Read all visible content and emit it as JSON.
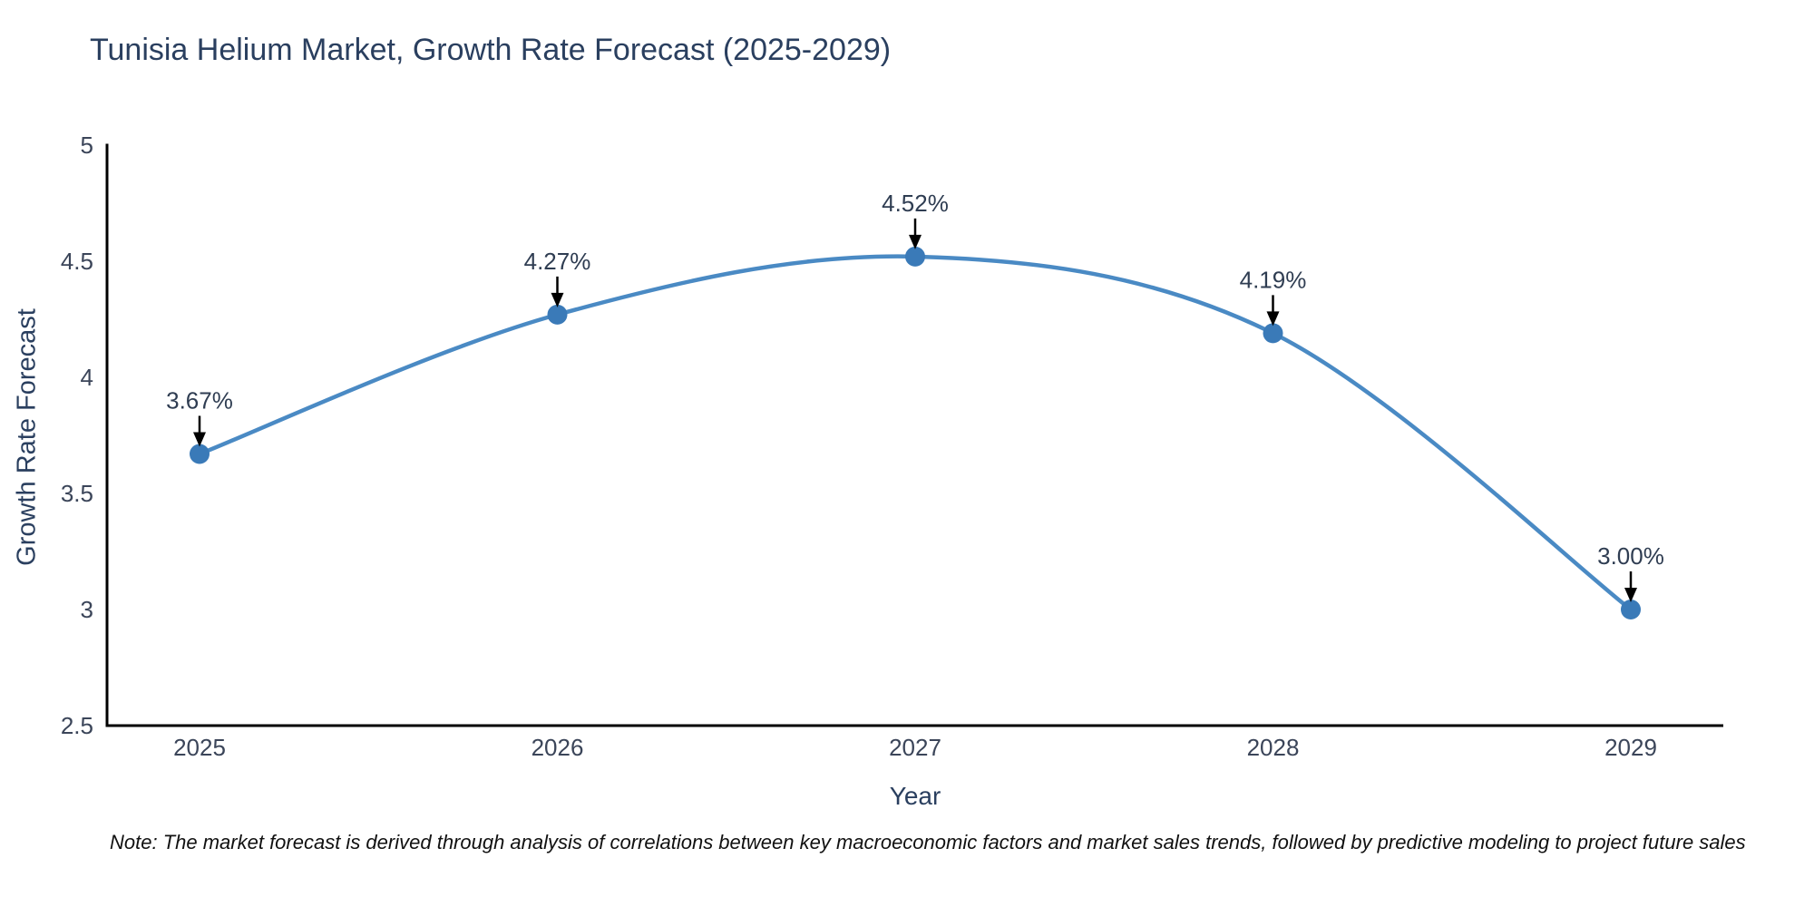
{
  "chart_data": {
    "type": "line",
    "title": "Tunisia Helium Market, Growth Rate Forecast (2025-2029)",
    "xlabel": "Year",
    "ylabel": "Growth Rate Forecast",
    "categories": [
      "2025",
      "2026",
      "2027",
      "2028",
      "2029"
    ],
    "series": [
      {
        "name": "Growth Rate Forecast",
        "values": [
          3.67,
          4.27,
          4.52,
          4.19,
          3.0
        ],
        "point_labels": [
          "3.67%",
          "4.27%",
          "4.52%",
          "4.19%",
          "3.00%"
        ]
      }
    ],
    "ylim": [
      2.5,
      5
    ],
    "yticks": [
      2.5,
      3,
      3.5,
      4,
      4.5,
      5
    ],
    "grid": false,
    "legend_position": "none",
    "line_shape": "spline",
    "note": "Note: The market forecast is derived through analysis of correlations between key macroeconomic factors and market sales trends, followed by predictive modeling to project future sales",
    "colors": {
      "line": "#4a8ac4",
      "marker": "#3a7ab8",
      "annotation_arrow": "#000000",
      "annotation_text": "#2f3d52",
      "axis_line": "#000000",
      "tick_text": "#3b4559",
      "title_text": "#2a3f5f"
    }
  }
}
